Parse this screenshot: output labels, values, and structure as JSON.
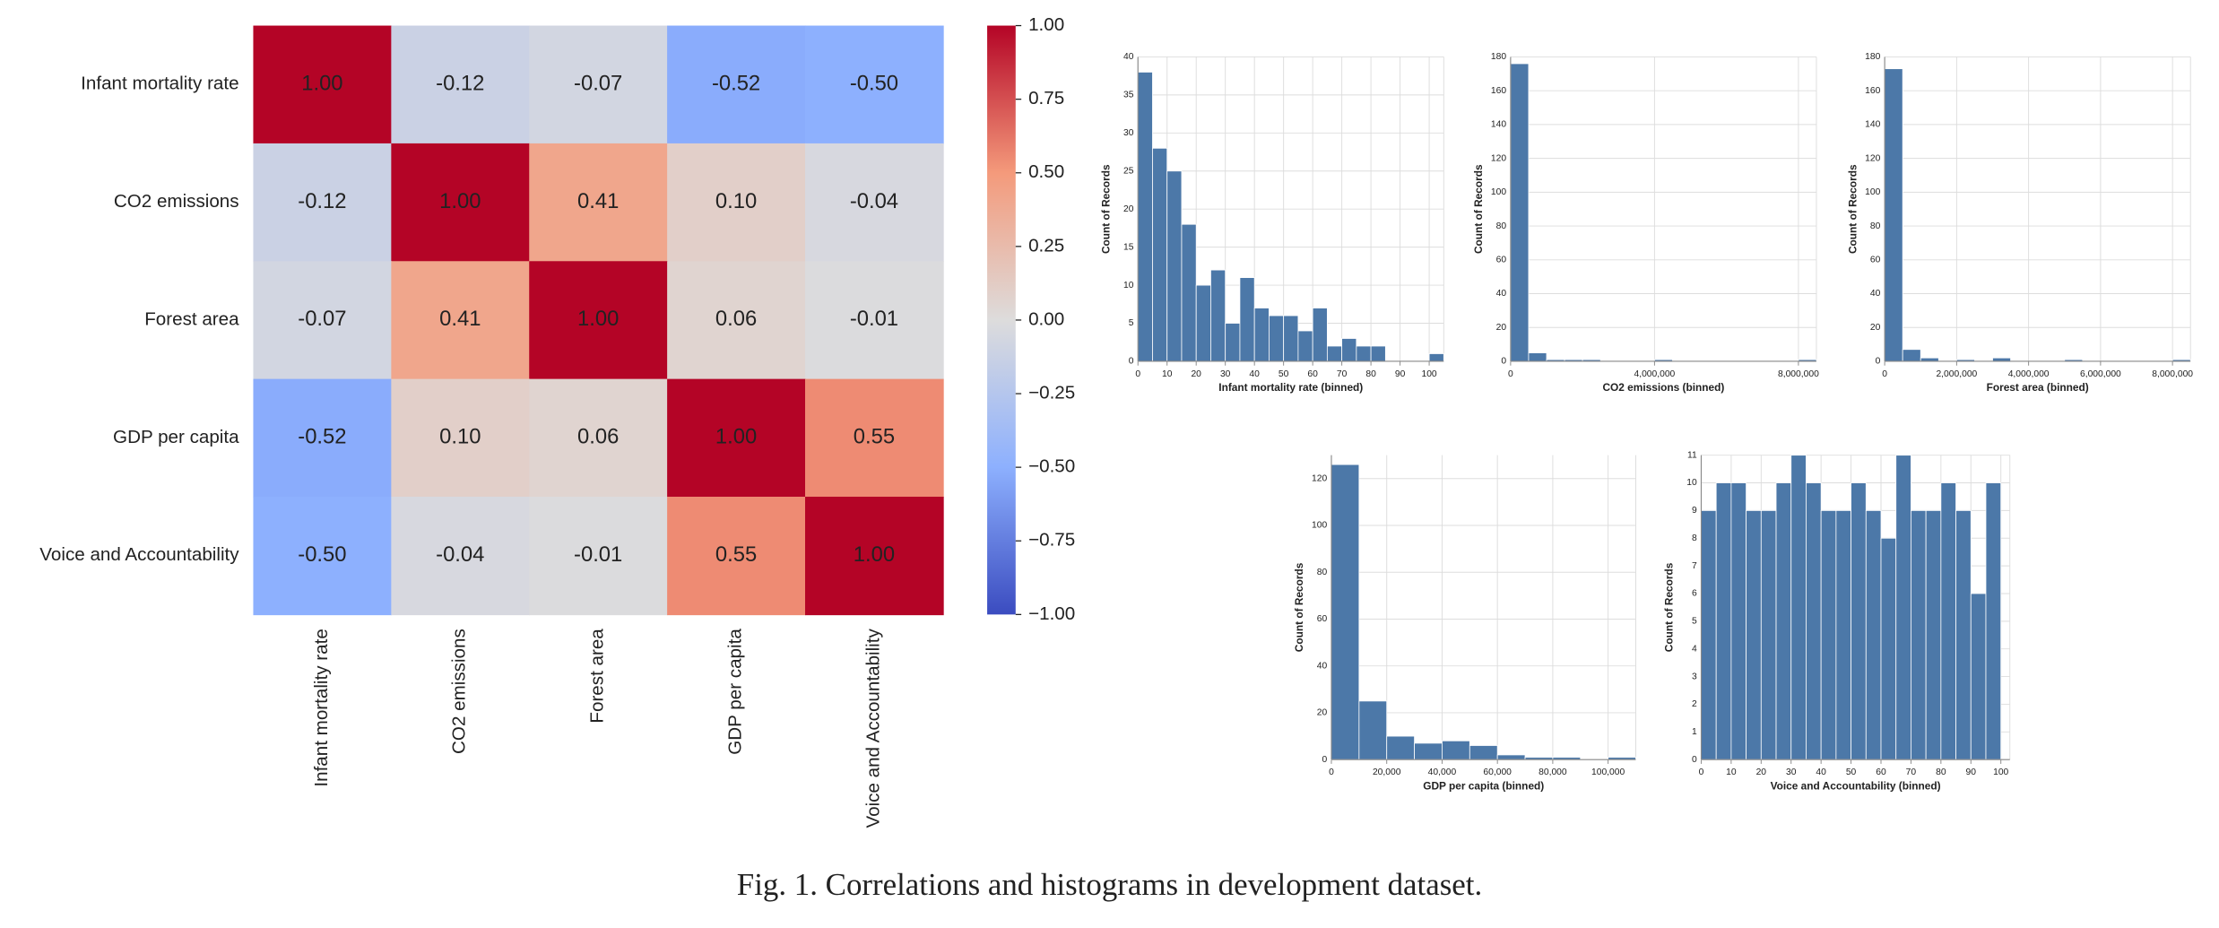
{
  "caption": "Fig. 1. Correlations and histograms in development dataset.",
  "chart_data": [
    {
      "type": "heatmap",
      "categories": [
        "Infant mortality rate",
        "CO2 emissions",
        "Forest area",
        "GDP per capita",
        "Voice and Accountability"
      ],
      "values": [
        [
          1,
          -0.12,
          -0.07,
          -0.52,
          -0.5
        ],
        [
          -0.12,
          1,
          0.41,
          0.1,
          -0.04
        ],
        [
          -0.07,
          0.41,
          1,
          0.06,
          -0.01
        ],
        [
          -0.52,
          0.1,
          0.06,
          1,
          0.55
        ],
        [
          -0.5,
          -0.04,
          -0.01,
          0.55,
          1
        ]
      ],
      "value_labels": [
        [
          "1.00",
          "-0.12",
          "-0.07",
          "-0.52",
          "-0.50"
        ],
        [
          "-0.12",
          "1.00",
          "0.41",
          "0.10",
          "-0.04"
        ],
        [
          "-0.07",
          "0.41",
          "1.00",
          "0.06",
          "-0.01"
        ],
        [
          "-0.52",
          "0.10",
          "0.06",
          "1.00",
          "0.55"
        ],
        [
          "-0.50",
          "-0.04",
          "-0.01",
          "0.55",
          "1.00"
        ]
      ],
      "zlim": [
        -1,
        1
      ],
      "colorscale": [
        "#3b4cc0",
        "#8db0fe",
        "#dddcdc",
        "#f49a7b",
        "#b40426"
      ],
      "zticks": [
        {
          "value": 1,
          "label": "1.00"
        },
        {
          "value": 0.75,
          "label": "0.75"
        },
        {
          "value": 0.5,
          "label": "0.50"
        },
        {
          "value": 0.25,
          "label": "0.25"
        },
        {
          "value": 0,
          "label": "0.00"
        },
        {
          "value": -0.25,
          "label": "−0.25"
        },
        {
          "value": -0.5,
          "label": "−0.50"
        },
        {
          "value": -0.75,
          "label": "−0.75"
        },
        {
          "value": -1,
          "label": "−1.00"
        }
      ]
    },
    {
      "type": "histogram",
      "xlabel": "Infant mortality rate (binned)",
      "ylabel": "Count of Records",
      "color": "#4c78a8",
      "grid": true,
      "bins": [
        0,
        5,
        10,
        15,
        20,
        25,
        30,
        35,
        40,
        45,
        50,
        55,
        60,
        65,
        70,
        75,
        80,
        85,
        90,
        95,
        100,
        105
      ],
      "counts": [
        38,
        28,
        25,
        18,
        10,
        12,
        5,
        11,
        7,
        6,
        6,
        4,
        7,
        2,
        3,
        2,
        2,
        0,
        0,
        0,
        1
      ],
      "xlim": [
        0,
        105
      ],
      "xticks": [
        0,
        10,
        20,
        30,
        40,
        50,
        60,
        70,
        80,
        90,
        100
      ],
      "ylim": [
        0,
        40
      ],
      "yticks": [
        0,
        5,
        10,
        15,
        20,
        25,
        30,
        35,
        40
      ]
    },
    {
      "type": "histogram",
      "xlabel": "CO2 emissions (binned)",
      "ylabel": "Count of Records",
      "color": "#4c78a8",
      "grid": true,
      "bins": [
        0,
        500000,
        1000000,
        1500000,
        2000000,
        2500000,
        3000000,
        3500000,
        4000000,
        4500000,
        5000000,
        5500000,
        6000000,
        6500000,
        7000000,
        7500000,
        8000000,
        8500000
      ],
      "counts": [
        176,
        5,
        1,
        1,
        1,
        0,
        0,
        0,
        1,
        0,
        0,
        0,
        0,
        0,
        0,
        0,
        1
      ],
      "xlim": [
        0,
        8500000
      ],
      "xticks": [
        0,
        {
          "value": 4000000,
          "label": "4,000,000"
        },
        {
          "value": 8000000,
          "label": "8,000,000"
        }
      ],
      "ylim": [
        0,
        180
      ],
      "yticks": [
        0,
        20,
        40,
        60,
        80,
        100,
        120,
        140,
        160,
        180
      ]
    },
    {
      "type": "histogram",
      "xlabel": "Forest area (binned)",
      "ylabel": "Count of Records",
      "color": "#4c78a8",
      "grid": true,
      "bins": [
        0,
        500000,
        1000000,
        1500000,
        2000000,
        2500000,
        3000000,
        3500000,
        4000000,
        4500000,
        5000000,
        5500000,
        6000000,
        6500000,
        7000000,
        7500000,
        8000000,
        8500000
      ],
      "counts": [
        173,
        7,
        2,
        0,
        1,
        0,
        2,
        0,
        0,
        0,
        1,
        0,
        0,
        0,
        0,
        0,
        1
      ],
      "xlim": [
        0,
        8500000
      ],
      "xticks": [
        0,
        {
          "value": 2000000,
          "label": "2,000,000"
        },
        {
          "value": 4000000,
          "label": "4,000,000"
        },
        {
          "value": 6000000,
          "label": "6,000,000"
        },
        {
          "value": 8000000,
          "label": "8,000,000"
        }
      ],
      "ylim": [
        0,
        180
      ],
      "yticks": [
        0,
        20,
        40,
        60,
        80,
        100,
        120,
        140,
        160,
        180
      ]
    },
    {
      "type": "histogram",
      "xlabel": "GDP per capita (binned)",
      "ylabel": "Count of Records",
      "color": "#4c78a8",
      "grid": true,
      "bins": [
        0,
        10000,
        20000,
        30000,
        40000,
        50000,
        60000,
        70000,
        80000,
        90000,
        100000,
        110000
      ],
      "counts": [
        126,
        25,
        10,
        7,
        8,
        6,
        2,
        1,
        1,
        0,
        1
      ],
      "xlim": [
        0,
        110000
      ],
      "xticks": [
        0,
        {
          "value": 20000,
          "label": "20,000"
        },
        {
          "value": 40000,
          "label": "40,000"
        },
        {
          "value": 60000,
          "label": "60,000"
        },
        {
          "value": 80000,
          "label": "80,000"
        },
        {
          "value": 100000,
          "label": "100,000"
        }
      ],
      "ylim": [
        0,
        130
      ],
      "yticks": [
        0,
        20,
        40,
        60,
        80,
        100,
        120
      ]
    },
    {
      "type": "histogram",
      "xlabel": "Voice and Accountability (binned)",
      "ylabel": "Count of Records",
      "color": "#4c78a8",
      "grid": true,
      "bins": [
        0,
        5,
        10,
        15,
        20,
        25,
        30,
        35,
        40,
        45,
        50,
        55,
        60,
        65,
        70,
        75,
        80,
        85,
        90,
        95,
        100
      ],
      "counts": [
        9,
        10,
        10,
        9,
        9,
        10,
        11,
        10,
        9,
        9,
        10,
        9,
        8,
        11,
        9,
        9,
        10,
        9,
        6,
        10
      ],
      "xlim": [
        0,
        103
      ],
      "xticks": [
        0,
        10,
        20,
        30,
        40,
        50,
        60,
        70,
        80,
        90,
        100
      ],
      "ylim": [
        0,
        11
      ],
      "yticks": [
        0,
        1,
        2,
        3,
        4,
        5,
        6,
        7,
        8,
        9,
        10,
        11
      ]
    }
  ]
}
